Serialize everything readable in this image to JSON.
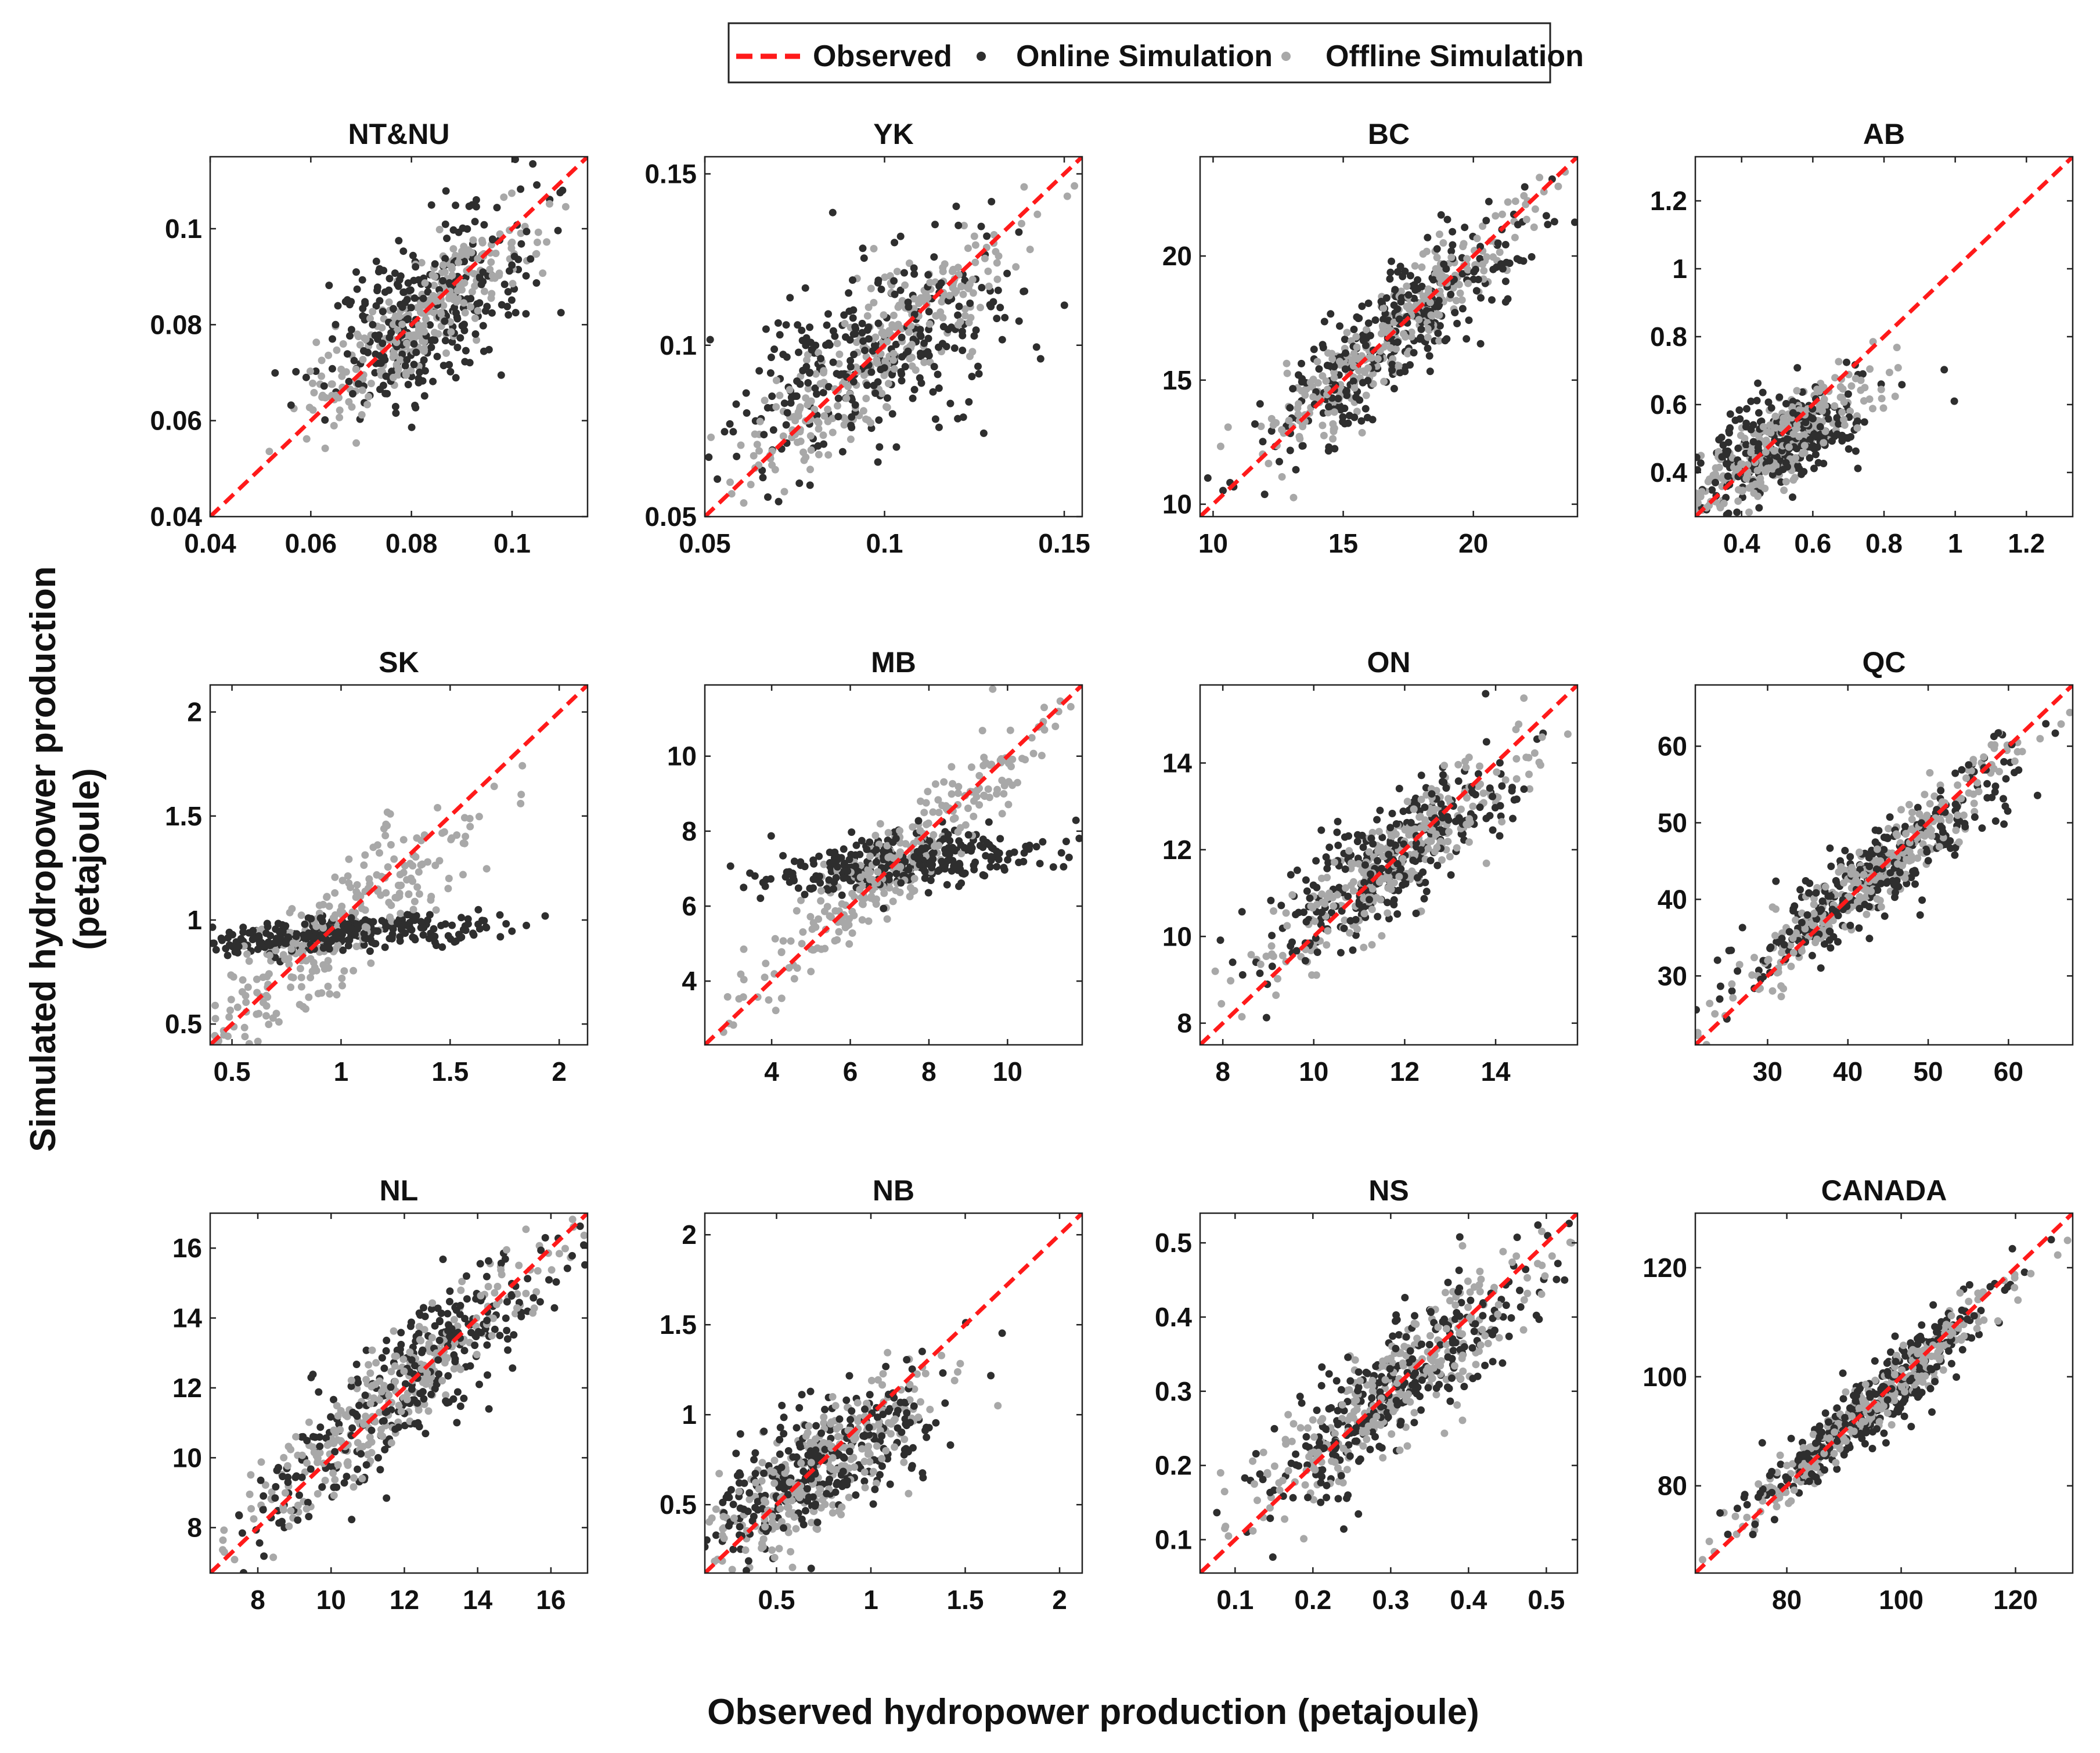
{
  "colors": {
    "observed": "#ff1a1a",
    "online": "#2e2e2e",
    "offline": "#a8a8a8",
    "axis": "#222222"
  },
  "legend": {
    "observed": "Observed",
    "online": "Online Simulation",
    "offline": "Offline Simulation"
  },
  "xlabel": "Observed hydropower production (petajoule)",
  "ylabel_line1": "Simulated hydropower production",
  "ylabel_line2": "(petajoule)",
  "chart_data": [
    {
      "type": "scatter",
      "title": "NT&NU",
      "xlim": [
        0.04,
        0.115
      ],
      "ylim": [
        0.04,
        0.115
      ],
      "xticks": [
        0.04,
        0.06,
        0.08,
        0.1
      ],
      "xtick_labels": [
        "0.04",
        "0.06",
        "0.08",
        "0.1"
      ],
      "yticks": [
        0.04,
        0.06,
        0.08,
        0.1
      ],
      "ytick_labels": [
        "0.04",
        "0.06",
        "0.08",
        "0.1"
      ],
      "center": [
        0.082,
        0.082
      ],
      "spread": 0.011,
      "online": {
        "slope": 0.52,
        "noise": 0.0085
      },
      "offline": {
        "slope": 0.78,
        "noise": 0.0055
      }
    },
    {
      "type": "scatter",
      "title": "YK",
      "xlim": [
        0.05,
        0.155
      ],
      "ylim": [
        0.05,
        0.155
      ],
      "xticks": [
        0.05,
        0.1,
        0.15
      ],
      "xtick_labels": [
        "0.05",
        "0.1",
        "0.15"
      ],
      "yticks": [
        0.05,
        0.1,
        0.15
      ],
      "ytick_labels": [
        "0.05",
        "0.1",
        "0.15"
      ],
      "center": [
        0.095,
        0.095
      ],
      "spread": 0.021,
      "online": {
        "slope": 0.45,
        "noise": 0.013
      },
      "offline": {
        "slope": 0.85,
        "noise": 0.009
      }
    },
    {
      "type": "scatter",
      "title": "BC",
      "xlim": [
        9.5,
        24
      ],
      "ylim": [
        9.5,
        24
      ],
      "xticks": [
        10,
        15,
        20
      ],
      "xtick_labels": [
        "10",
        "15",
        "20"
      ],
      "yticks": [
        10,
        15,
        20
      ],
      "ytick_labels": [
        "10",
        "15",
        "20"
      ],
      "center": [
        17,
        17
      ],
      "spread": 2.6,
      "online": {
        "slope": 0.82,
        "noise": 1.3
      },
      "offline": {
        "slope": 0.92,
        "noise": 0.9
      }
    },
    {
      "type": "scatter",
      "title": "AB",
      "xlim": [
        0.27,
        1.33
      ],
      "ylim": [
        0.27,
        1.33
      ],
      "xticks": [
        0.4,
        0.6,
        0.8,
        1,
        1.2
      ],
      "xtick_labels": [
        "0.4",
        "0.6",
        "0.8",
        "1",
        "1.2"
      ],
      "yticks": [
        0.4,
        0.6,
        0.8,
        1,
        1.2
      ],
      "ytick_labels": [
        "0.4",
        "0.6",
        "0.8",
        "1",
        "1.2"
      ],
      "center": [
        0.5,
        0.48
      ],
      "spread": 0.14,
      "online": {
        "slope": 0.42,
        "noise": 0.07
      },
      "offline": {
        "slope": 0.72,
        "noise": 0.06
      }
    },
    {
      "type": "scatter",
      "title": "SK",
      "xlim": [
        0.4,
        2.13
      ],
      "ylim": [
        0.4,
        2.13
      ],
      "xticks": [
        0.5,
        1,
        1.5,
        2
      ],
      "xtick_labels": [
        "0.5",
        "1",
        "1.5",
        "2"
      ],
      "yticks": [
        0.5,
        1,
        1.5,
        2
      ],
      "ytick_labels": [
        "0.5",
        "1",
        "1.5",
        "2"
      ],
      "center": [
        0.95,
        0.93
      ],
      "spread": 0.32,
      "online": {
        "slope": 0.05,
        "noise": 0.04
      },
      "offline": {
        "slope": 0.82,
        "noise": 0.14
      }
    },
    {
      "type": "scatter",
      "title": "MB",
      "xlim": [
        2.3,
        11.9
      ],
      "ylim": [
        2.3,
        11.9
      ],
      "xticks": [
        4,
        6,
        8,
        10
      ],
      "xtick_labels": [
        "4",
        "6",
        "8",
        "10"
      ],
      "yticks": [
        4,
        6,
        8,
        10
      ],
      "ytick_labels": [
        "4",
        "6",
        "8",
        "10"
      ],
      "center": [
        7.2,
        7.2
      ],
      "spread": 1.9,
      "online": {
        "slope": 0.1,
        "noise": 0.35
      },
      "offline": {
        "slope": 0.9,
        "noise": 0.6
      }
    },
    {
      "type": "scatter",
      "title": "ON",
      "xlim": [
        7.5,
        15.8
      ],
      "ylim": [
        7.5,
        15.8
      ],
      "xticks": [
        8,
        10,
        12,
        14
      ],
      "xtick_labels": [
        "8",
        "10",
        "12",
        "14"
      ],
      "yticks": [
        8,
        10,
        12,
        14
      ],
      "ytick_labels": [
        "8",
        "10",
        "12",
        "14"
      ],
      "center": [
        11.7,
        11.7
      ],
      "spread": 1.4,
      "online": {
        "slope": 0.62,
        "noise": 0.7
      },
      "offline": {
        "slope": 0.8,
        "noise": 0.55
      }
    },
    {
      "type": "scatter",
      "title": "QC",
      "xlim": [
        21,
        68
      ],
      "ylim": [
        21,
        68
      ],
      "xticks": [
        30,
        40,
        50,
        60
      ],
      "xtick_labels": [
        "30",
        "40",
        "50",
        "60"
      ],
      "yticks": [
        30,
        40,
        50,
        60
      ],
      "ytick_labels": [
        "30",
        "40",
        "50",
        "60"
      ],
      "center": [
        44,
        44
      ],
      "spread": 8.5,
      "online": {
        "slope": 0.8,
        "noise": 3.2
      },
      "offline": {
        "slope": 0.92,
        "noise": 2.3
      }
    },
    {
      "type": "scatter",
      "title": "NL",
      "xlim": [
        6.7,
        17
      ],
      "ylim": [
        6.7,
        17
      ],
      "xticks": [
        8,
        10,
        12,
        14,
        16
      ],
      "xtick_labels": [
        "8",
        "10",
        "12",
        "14",
        "16"
      ],
      "yticks": [
        8,
        10,
        12,
        14,
        16
      ],
      "ytick_labels": [
        "8",
        "10",
        "12",
        "14",
        "16"
      ],
      "center": [
        12,
        12
      ],
      "spread": 2.2,
      "online": {
        "slope": 0.85,
        "noise": 1.0
      },
      "offline": {
        "slope": 0.92,
        "noise": 0.7
      }
    },
    {
      "type": "scatter",
      "title": "NB",
      "xlim": [
        0.12,
        2.12
      ],
      "ylim": [
        0.12,
        2.12
      ],
      "xticks": [
        0.5,
        1,
        1.5,
        2
      ],
      "xtick_labels": [
        "0.5",
        "1",
        "1.5",
        "2"
      ],
      "yticks": [
        0.5,
        1,
        1.5,
        2
      ],
      "ytick_labels": [
        "0.5",
        "1",
        "1.5",
        "2"
      ],
      "center": [
        0.75,
        0.72
      ],
      "spread": 0.32,
      "online": {
        "slope": 0.6,
        "noise": 0.18
      },
      "offline": {
        "slope": 0.7,
        "noise": 0.15
      }
    },
    {
      "type": "scatter",
      "title": "NS",
      "xlim": [
        0.055,
        0.54
      ],
      "ylim": [
        0.055,
        0.54
      ],
      "xticks": [
        0.1,
        0.2,
        0.3,
        0.4,
        0.5
      ],
      "xtick_labels": [
        "0.1",
        "0.2",
        "0.3",
        "0.4",
        "0.5"
      ],
      "yticks": [
        0.1,
        0.2,
        0.3,
        0.4,
        0.5
      ],
      "ytick_labels": [
        "0.1",
        "0.2",
        "0.3",
        "0.4",
        "0.5"
      ],
      "center": [
        0.3,
        0.3
      ],
      "spread": 0.09,
      "online": {
        "slope": 0.82,
        "noise": 0.04
      },
      "offline": {
        "slope": 0.88,
        "noise": 0.04
      }
    },
    {
      "type": "scatter",
      "title": "CANADA",
      "xlim": [
        64,
        130
      ],
      "ylim": [
        64,
        130
      ],
      "xticks": [
        80,
        100,
        120
      ],
      "xtick_labels": [
        "80",
        "100",
        "120"
      ],
      "yticks": [
        80,
        100,
        120
      ],
      "ytick_labels": [
        "80",
        "100",
        "120"
      ],
      "center": [
        96,
        96
      ],
      "spread": 11,
      "online": {
        "slope": 0.88,
        "noise": 3.5
      },
      "offline": {
        "slope": 0.93,
        "noise": 2.5
      }
    }
  ]
}
